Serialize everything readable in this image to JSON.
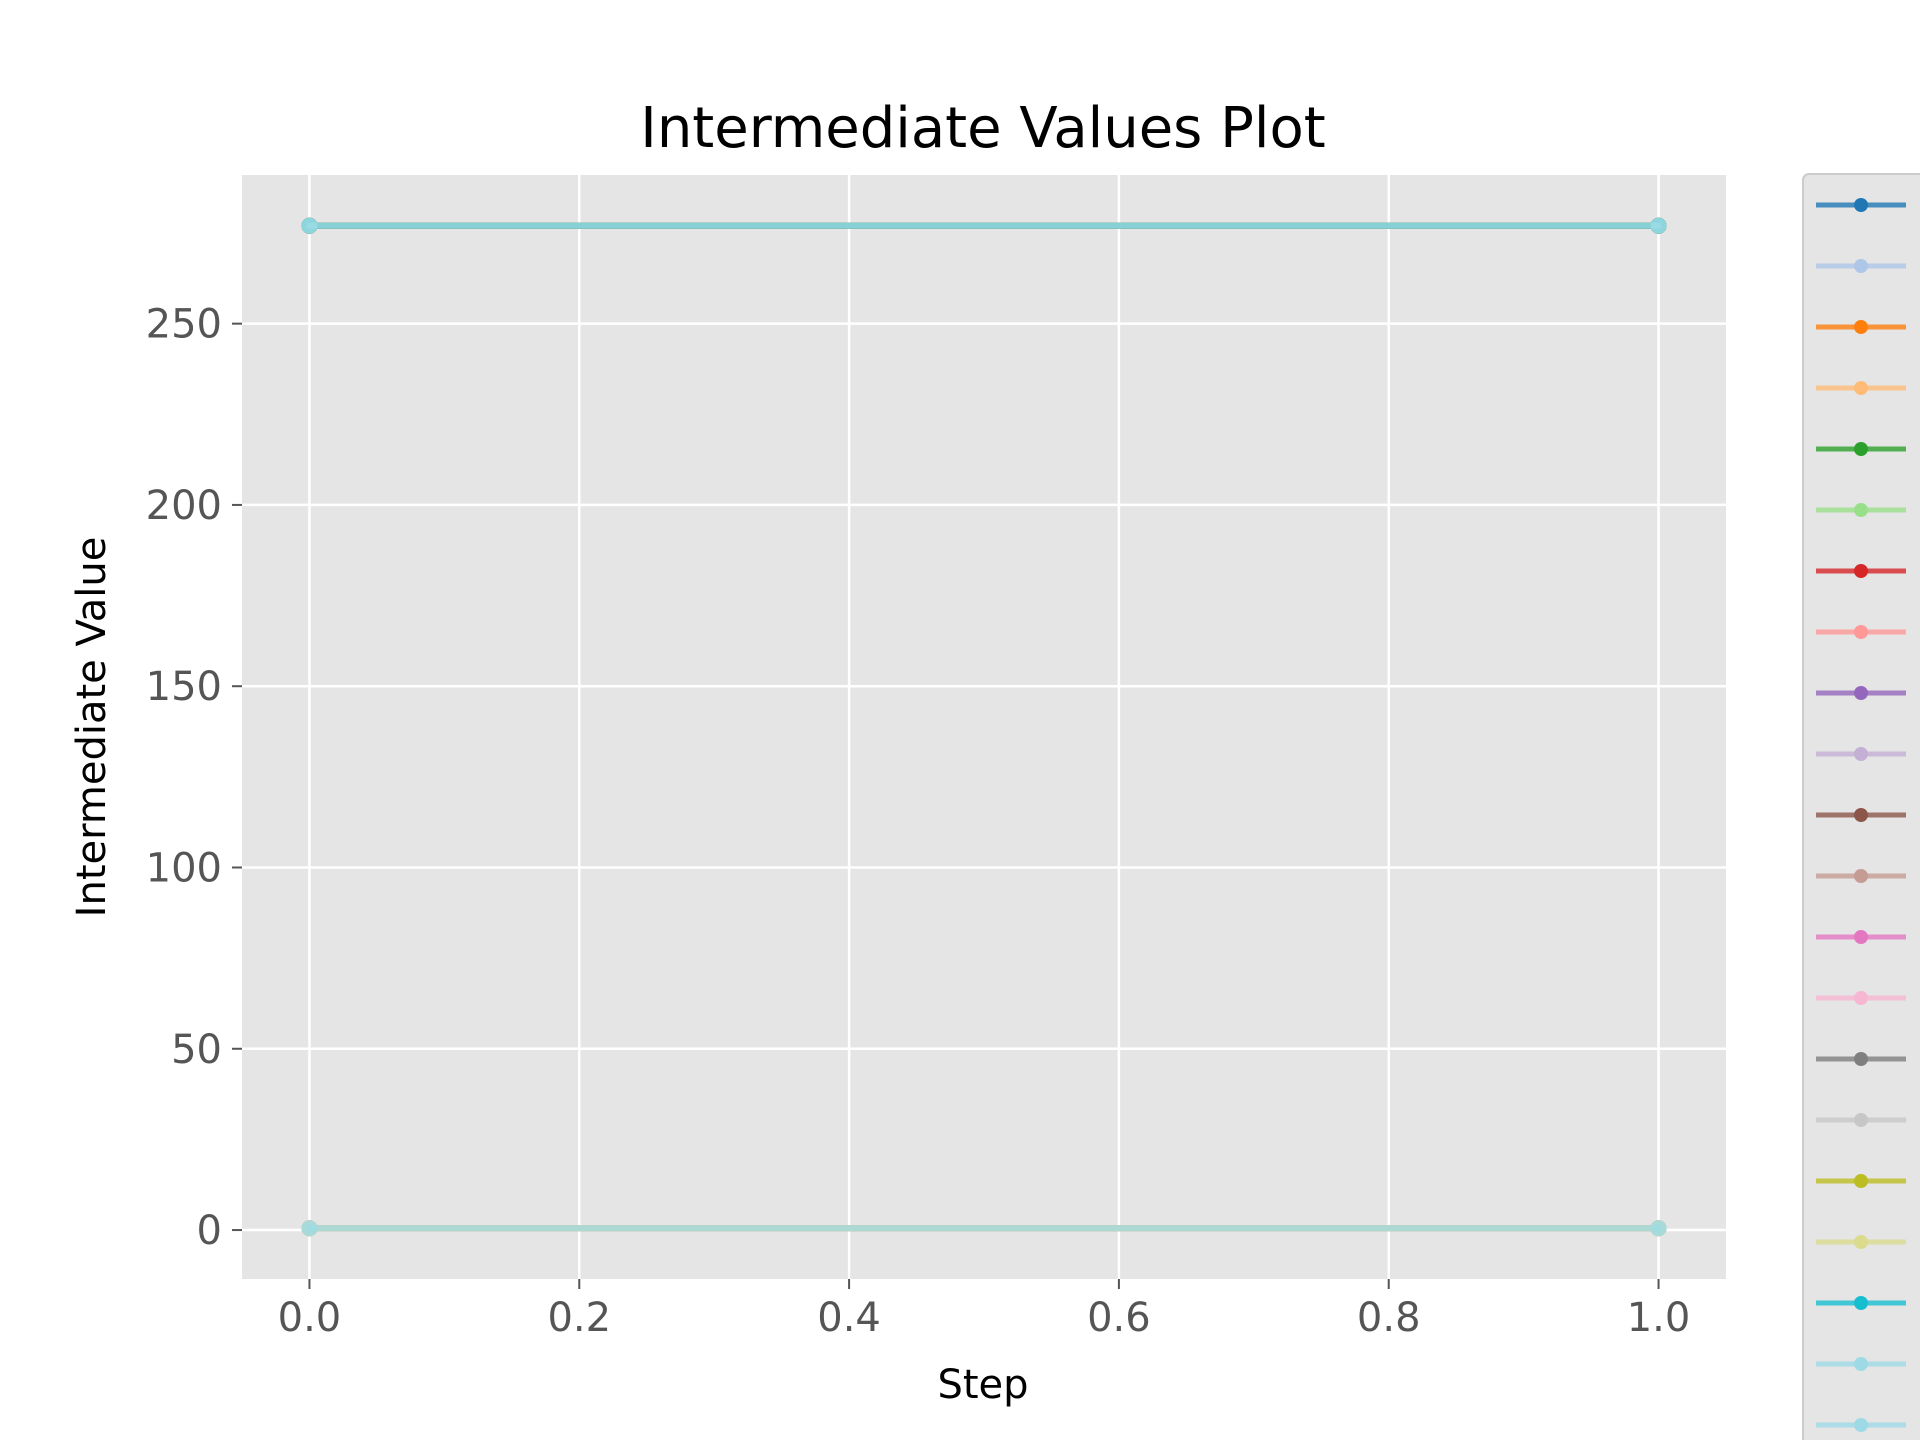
{
  "chart_data": {
    "type": "line",
    "title": "Intermediate Values Plot",
    "xlabel": "Step",
    "ylabel": "Intermediate Value",
    "xlim": [
      -0.05,
      1.05
    ],
    "ylim": [
      -13.5,
      291
    ],
    "x_ticks": [
      0.0,
      0.2,
      0.4,
      0.6,
      0.8,
      1.0
    ],
    "x_tick_labels": [
      "0.0",
      "0.2",
      "0.4",
      "0.6",
      "0.8",
      "1.0"
    ],
    "y_ticks": [
      0,
      50,
      100,
      150,
      200,
      250
    ],
    "y_tick_labels": [
      "0",
      "50",
      "100",
      "150",
      "200",
      "250"
    ],
    "grid": true,
    "legend_position": "right",
    "background": "#e5e5e5",
    "x": [
      0,
      1
    ],
    "series": [
      {
        "color": "#1f77b4",
        "values": [
          277,
          277
        ]
      },
      {
        "color": "#aec7e8",
        "values": [
          0.5,
          0.5
        ]
      },
      {
        "color": "#ff7f0e",
        "values": [
          277,
          277
        ]
      },
      {
        "color": "#ffbb78",
        "values": [
          0.5,
          0.5
        ]
      },
      {
        "color": "#2ca02c",
        "values": [
          277,
          277
        ]
      },
      {
        "color": "#98df8a",
        "values": [
          0.5,
          0.5
        ]
      },
      {
        "color": "#d62728",
        "values": [
          277,
          277
        ]
      },
      {
        "color": "#ff9896",
        "values": [
          0.5,
          0.5
        ]
      },
      {
        "color": "#9467bd",
        "values": [
          277,
          277
        ]
      },
      {
        "color": "#c5b0d5",
        "values": [
          0.5,
          0.5
        ]
      },
      {
        "color": "#8c564b",
        "values": [
          277,
          277
        ]
      },
      {
        "color": "#c49c94",
        "values": [
          0.5,
          0.5
        ]
      },
      {
        "color": "#e377c2",
        "values": [
          277,
          277
        ]
      },
      {
        "color": "#f7b6d2",
        "values": [
          0.5,
          0.5
        ]
      },
      {
        "color": "#7f7f7f",
        "values": [
          277,
          277
        ]
      },
      {
        "color": "#c7c7c7",
        "values": [
          0.5,
          0.5
        ]
      },
      {
        "color": "#bcbd22",
        "values": [
          277,
          277
        ]
      },
      {
        "color": "#dbdb8d",
        "values": [
          0.5,
          0.5
        ]
      },
      {
        "color": "#17becf",
        "values": [
          277,
          277
        ]
      },
      {
        "color": "#9edae5",
        "values": [
          0.5,
          0.5
        ]
      },
      {
        "color": "#9edae5",
        "values": [
          277,
          277
        ]
      }
    ]
  }
}
